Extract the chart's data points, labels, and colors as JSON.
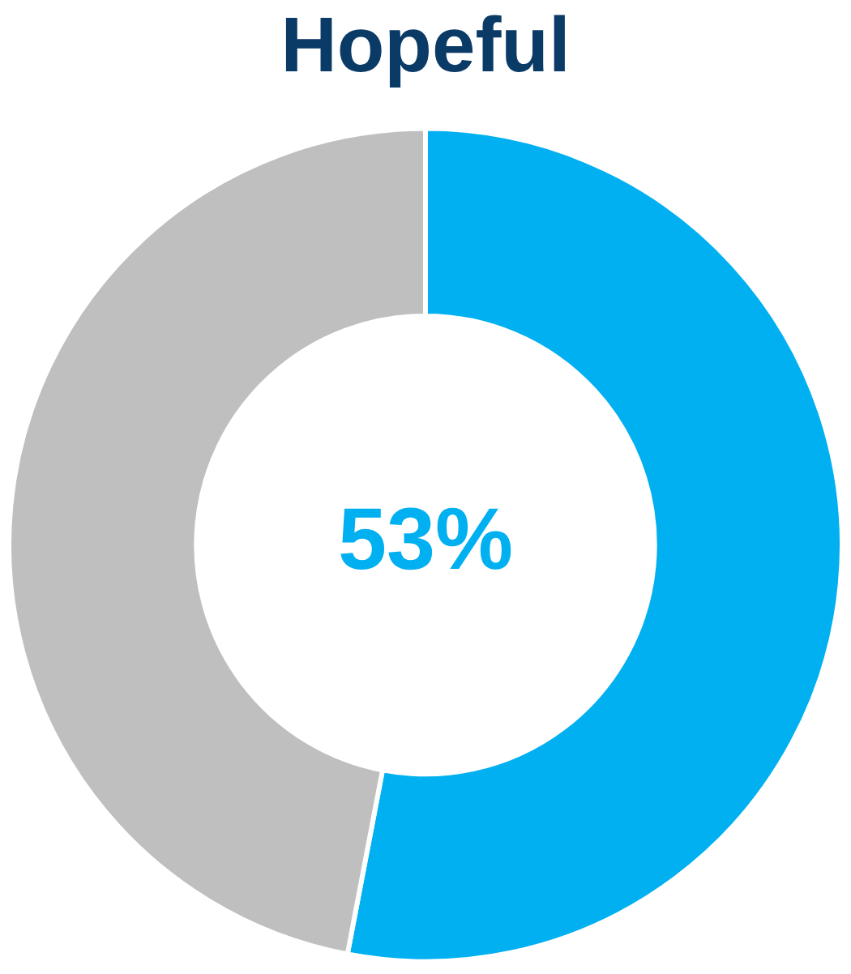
{
  "chart_data": {
    "type": "donut",
    "title": "Hopeful",
    "categories": [
      null,
      null
    ],
    "values": [
      53,
      47
    ],
    "colors": [
      "#00b0f0",
      "#bfbfbf"
    ],
    "value_labels": [
      "53%",
      null
    ],
    "legend": false
  }
}
